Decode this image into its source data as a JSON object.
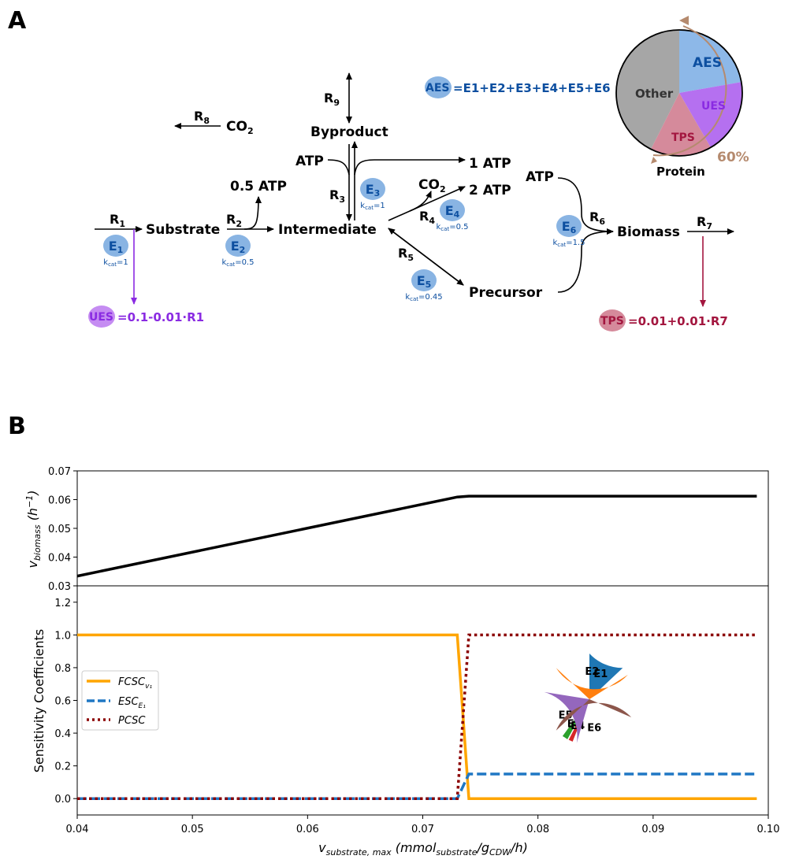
{
  "panel_a": {
    "label": "A",
    "nodes": {
      "substrate": "Substrate",
      "intermediate": "Intermediate",
      "byproduct": "Byproduct",
      "co2_r8": "CO",
      "co2_r4": "CO",
      "atp_half": "0.5 ATP",
      "atp_r3_in": "ATP",
      "atp_one": "1 ATP",
      "atp_two": "2 ATP",
      "atp_r6_in": "ATP",
      "precursor": "Precursor",
      "biomass": "Biomass"
    },
    "reactions": [
      "R1",
      "R2",
      "R3",
      "R4",
      "R5",
      "R6",
      "R7",
      "R8",
      "R9"
    ],
    "enzymes": [
      {
        "label": "E1",
        "kcat": "=1"
      },
      {
        "label": "E2",
        "kcat": "=0.5"
      },
      {
        "label": "E3",
        "kcat": "=1"
      },
      {
        "label": "E4",
        "kcat": "=0.5"
      },
      {
        "label": "E5",
        "kcat": "=0.45"
      },
      {
        "label": "E6",
        "kcat": "=1.5"
      }
    ],
    "aes_equation": {
      "badge": "AES",
      "expr": "=E1+E2+E3+E4+E5+E6"
    },
    "ues_equation": {
      "badge": "UES",
      "expr": "=0.1-0.01·R1"
    },
    "tps_equation": {
      "badge": "TPS",
      "expr": "=0.01+0.01·R7"
    },
    "proteome_pie": {
      "slices": [
        "Other",
        "AES",
        "UES",
        "TPS"
      ],
      "group_label": "Protein",
      "percent_label": "60%"
    },
    "colors": {
      "enzyme": "#89b4e3",
      "aes_text": "#0d4fa0",
      "ues": "#8a2be2",
      "tps": "#a3163f",
      "pie_other": "#a6a6a6",
      "pie_aes": "#8db8e8",
      "pie_ues": "#b570f0",
      "pie_tps": "#d58a9b",
      "protein_arc": "#b58a6e"
    }
  },
  "panel_b": {
    "label": "B",
    "chart_data": [
      {
        "type": "line",
        "ylabel": "v_biomass (h⁻¹)",
        "ylim": [
          0.03,
          0.07
        ],
        "xlim": [
          0.04,
          0.1
        ],
        "yticks": [
          "0.03",
          "0.04",
          "0.05",
          "0.06",
          "0.07"
        ],
        "series": [
          {
            "color": "#000000",
            "x": [
              0.04,
              0.073,
              0.074,
              0.099
            ],
            "y": [
              0.0334,
              0.0609,
              0.0612,
              0.0612
            ]
          }
        ]
      },
      {
        "type": "line",
        "ylabel": "Sensitivity Coefficients",
        "xlabel": "v_substrate,max (mmol_substrate/g_CDW/h)",
        "ylim": [
          -0.1,
          1.3
        ],
        "xlim": [
          0.04,
          0.1
        ],
        "yticks": [
          "0.0",
          "0.2",
          "0.4",
          "0.6",
          "0.8",
          "1.0",
          "1.2"
        ],
        "xticks": [
          "0.04",
          "0.05",
          "0.06",
          "0.07",
          "0.08",
          "0.09",
          "0.10"
        ],
        "legend_position": "center-left",
        "series": [
          {
            "name": "FCSC",
            "subscript": "v₁",
            "color": "#ffa500",
            "dash": "solid",
            "x": [
              0.04,
              0.073,
              0.074,
              0.099
            ],
            "y": [
              1.0,
              1.0,
              0.0,
              0.0
            ]
          },
          {
            "name": "ESC",
            "subscript": "E₁",
            "color": "#1f77c4",
            "dash": "dashed",
            "x": [
              0.04,
              0.073,
              0.074,
              0.099
            ],
            "y": [
              0.0,
              0.0,
              0.15,
              0.15
            ]
          },
          {
            "name": "PCSC",
            "subscript": "",
            "color": "#8b0000",
            "dash": "dotted",
            "x": [
              0.04,
              0.073,
              0.074,
              0.099
            ],
            "y": [
              0.0,
              0.0,
              1.0,
              1.0
            ]
          }
        ],
        "inset_pie": {
          "type": "pie",
          "labels": [
            "E1",
            "E2",
            "E3",
            "E4",
            "E5",
            "E6"
          ],
          "values": [
            13,
            29,
            2,
            1.5,
            23,
            31.5
          ],
          "colors": [
            "#1f77b4",
            "#ff7f0e",
            "#2ca02c",
            "#d62728",
            "#9467bd",
            "#8c564b"
          ]
        }
      }
    ]
  }
}
